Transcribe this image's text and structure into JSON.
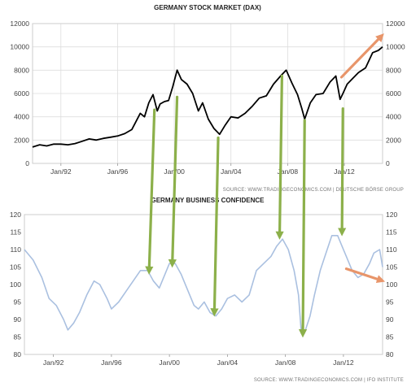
{
  "colors": {
    "dax_line": "#000000",
    "confidence_line": "#aac0e0",
    "green_arrow": "#8cb04a",
    "orange_arrow": "#e8956a",
    "grid": "#dddddd"
  },
  "chart_data": [
    {
      "type": "line",
      "title": "GERMANY STOCK MARKET (DAX)",
      "source": "SOURCE: WWW.TRADINGECONOMICS.COM  |  DEUTSCHE BÖRSE GROUP",
      "x_tick_labels": [
        "Jan/92",
        "Jan/96",
        "Jan/00",
        "Jan/04",
        "Jan/08",
        "Jan/12"
      ],
      "x_tick_years": [
        1992,
        1996,
        2000,
        2004,
        2008,
        2012
      ],
      "xlim": [
        1990.0,
        2014.7
      ],
      "ylim": [
        0,
        12000
      ],
      "y_ticks": [
        0,
        2000,
        4000,
        6000,
        8000,
        10000,
        12000
      ],
      "y_tick_labels": [
        "0",
        "2000",
        "4000",
        "6000",
        "8000",
        "10000",
        "12000"
      ],
      "grid": true,
      "series": [
        {
          "x": [
            1990.0,
            1990.5,
            1991.0,
            1991.5,
            1992.0,
            1992.5,
            1993.0,
            1993.5,
            1994.0,
            1994.5,
            1995.0,
            1995.5,
            1996.0,
            1996.5,
            1997.0,
            1997.3,
            1997.6,
            1997.9,
            1998.2,
            1998.5,
            1998.8,
            1999.0,
            1999.3,
            1999.6,
            1999.9,
            2000.2,
            2000.5,
            2000.9,
            2001.3,
            2001.7,
            2002.0,
            2002.4,
            2002.8,
            2003.2,
            2003.6,
            2004.0,
            2004.5,
            2005.0,
            2005.5,
            2006.0,
            2006.5,
            2007.0,
            2007.5,
            2007.9,
            2008.3,
            2008.7,
            2009.0,
            2009.2,
            2009.6,
            2010.0,
            2010.5,
            2011.0,
            2011.4,
            2011.7,
            2011.9,
            2012.2,
            2012.6,
            2013.0,
            2013.5,
            2014.0,
            2014.4,
            2014.7
          ],
          "y": [
            1400,
            1600,
            1500,
            1650,
            1650,
            1600,
            1700,
            1900,
            2100,
            2000,
            2150,
            2250,
            2350,
            2550,
            2900,
            3600,
            4300,
            4000,
            5200,
            5900,
            4500,
            5100,
            5300,
            5400,
            6600,
            8000,
            7200,
            6800,
            6000,
            4500,
            5200,
            3800,
            3000,
            2500,
            3300,
            4000,
            3900,
            4300,
            4900,
            5600,
            5800,
            6800,
            7500,
            8000,
            6900,
            5900,
            4700,
            3800,
            5200,
            5900,
            6000,
            7000,
            7500,
            5500,
            6000,
            6800,
            7300,
            7800,
            8200,
            9500,
            9700,
            10000
          ]
        }
      ]
    },
    {
      "type": "line",
      "title": "GERMANY BUSINESS CONFIDENCE",
      "source": "SOURCE: WWW.TRADINGECONOMICS.COM  |  IFO INSTITUTE",
      "x_tick_labels": [
        "Jan/92",
        "Jan/96",
        "Jan/00",
        "Jan/04",
        "Jan/08",
        "Jan/12"
      ],
      "x_tick_years": [
        1992,
        1996,
        2000,
        2004,
        2008,
        2012
      ],
      "xlim": [
        1990.0,
        2014.7
      ],
      "ylim": [
        80,
        120
      ],
      "y_ticks": [
        80,
        85,
        90,
        95,
        100,
        105,
        110,
        115,
        120
      ],
      "y_tick_labels": [
        "80",
        "85",
        "90",
        "95",
        "100",
        "105",
        "110",
        "115",
        "120"
      ],
      "grid": false,
      "series": [
        {
          "x": [
            1990.0,
            1990.6,
            1991.2,
            1991.7,
            1992.2,
            1992.7,
            1993.0,
            1993.4,
            1993.8,
            1994.3,
            1994.8,
            1995.2,
            1995.7,
            1996.0,
            1996.5,
            1997.0,
            1997.5,
            1998.0,
            1998.5,
            1998.9,
            1999.3,
            1999.7,
            2000.0,
            2000.4,
            2000.8,
            2001.2,
            2001.7,
            2002.0,
            2002.4,
            2002.8,
            2003.2,
            2003.6,
            2004.0,
            2004.5,
            2005.0,
            2005.5,
            2006.0,
            2006.5,
            2007.0,
            2007.4,
            2007.8,
            2008.2,
            2008.6,
            2008.9,
            2009.1,
            2009.3,
            2009.7,
            2010.0,
            2010.4,
            2010.8,
            2011.2,
            2011.6,
            2011.9,
            2012.2,
            2012.6,
            2013.0,
            2013.4,
            2013.8,
            2014.1,
            2014.5,
            2014.7
          ],
          "y": [
            110,
            107,
            102,
            96,
            94,
            90,
            87,
            89,
            92,
            97,
            101,
            100,
            96,
            93,
            95,
            98,
            101,
            104,
            104,
            101,
            99,
            103,
            106,
            106,
            103,
            99,
            94,
            93,
            95,
            92,
            91,
            93,
            96,
            97,
            95,
            97,
            104,
            106,
            108,
            111,
            113,
            110,
            104,
            97,
            86,
            86,
            91,
            97,
            104,
            109,
            114,
            114,
            111,
            108,
            104,
            102,
            103,
            106,
            109,
            110,
            105
          ]
        }
      ]
    }
  ],
  "annotations": {
    "green_arrows": [
      {
        "x": 1998.6,
        "from_dax": 4600,
        "to_conf": 104
      },
      {
        "x": 2000.2,
        "from_dax": 5700,
        "to_conf": 106
      },
      {
        "x": 2003.1,
        "from_dax": 2200,
        "to_conf": 92
      },
      {
        "x": 2007.6,
        "from_dax": 7500,
        "to_conf": 114
      },
      {
        "x": 2009.2,
        "from_dax": 3700,
        "to_conf": 86
      },
      {
        "x": 2011.9,
        "from_dax": 4700,
        "to_conf": 115
      }
    ],
    "orange_arrows": [
      {
        "chart": 0,
        "x1": 2011.8,
        "y1": 7400,
        "x2": 2014.6,
        "y2": 10900
      },
      {
        "chart": 1,
        "x1": 2012.2,
        "y1": 104.5,
        "x2": 2014.6,
        "y2": 101.2
      }
    ]
  }
}
